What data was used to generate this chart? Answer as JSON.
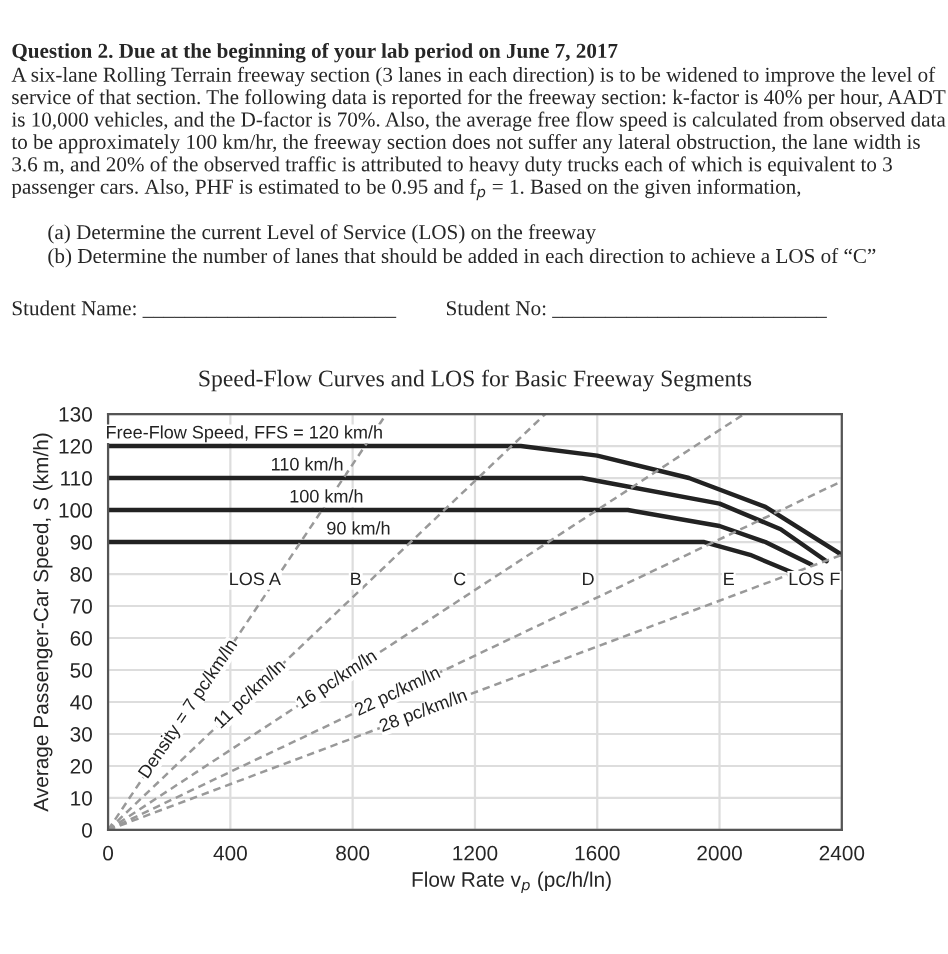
{
  "chart_data": {
    "type": "line",
    "title": "Speed-Flow Curves and LOS for Basic Freeway Segments",
    "xlabel": "Flow Rate v$_{p}$ (pc/h/ln)",
    "ylabel": "Average Passenger-Car Speed, S (km/h)",
    "xlim": [
      0,
      2400
    ],
    "xticks": [
      0,
      400,
      800,
      1200,
      1600,
      2000,
      2400
    ],
    "ylim": [
      0,
      130
    ],
    "yticks": [
      0,
      10,
      20,
      30,
      40,
      50,
      60,
      70,
      80,
      90,
      100,
      110,
      120,
      130
    ],
    "grid": true,
    "legend": false,
    "marker": "none",
    "line_style": "solid",
    "series": [
      {
        "name": "Free-Flow Speed, FFS = 120 km/h",
        "color": "#222222",
        "x": [
          0,
          1350,
          1600,
          1900,
          2150,
          2400
        ],
        "values": [
          120,
          120,
          117,
          110,
          101,
          86
        ]
      },
      {
        "name": "110 km/h",
        "color": "#222222",
        "x": [
          0,
          1550,
          2000,
          2200,
          2350
        ],
        "values": [
          110,
          110,
          102,
          94,
          84
        ]
      },
      {
        "name": "100 km/h",
        "color": "#222222",
        "x": [
          0,
          1700,
          2000,
          2150,
          2300
        ],
        "values": [
          100,
          100,
          95,
          90,
          83
        ]
      },
      {
        "name": "90 km/h",
        "color": "#222222",
        "x": [
          0,
          1950,
          2100,
          2250
        ],
        "values": [
          90,
          90,
          86,
          80
        ]
      },
      {
        "name": "Density = 7 pc/km/ln",
        "color": "#999999",
        "line_style": "dashed",
        "x": [
          0,
          910
        ],
        "values": [
          0,
          130
        ]
      },
      {
        "name": "11 pc/km/ln",
        "color": "#999999",
        "line_style": "dashed",
        "x": [
          0,
          1430
        ],
        "values": [
          0,
          130
        ]
      },
      {
        "name": "16 pc/km/ln",
        "color": "#999999",
        "line_style": "dashed",
        "x": [
          0,
          2080
        ],
        "values": [
          0,
          130
        ]
      },
      {
        "name": "22 pc/km/ln",
        "color": "#999999",
        "line_style": "dashed",
        "x": [
          0,
          2400
        ],
        "values": [
          0,
          109
        ]
      },
      {
        "name": "28 pc/km/ln",
        "color": "#999999",
        "line_style": "dashed",
        "x": [
          0,
          2400
        ],
        "values": [
          0,
          86
        ]
      }
    ],
    "annotations": [
      "Question 2. Due at the beginning of your lab period on June 7, 2017",
      "A six-lane Rolling Terrain freeway section (3 lanes in each direction) is to be widened to improve the level of service of that section. The following data is reported for the freeway section: k-factor is 40% per hour, AADT is 10,000 vehicles, and the D-factor is 70%. Also, the average free flow speed is calculated from observed data to be approximately 100 km/hr, the freeway section does not suffer any lateral obstruction, the lane width is 3.6 m, and 20% of the observed traffic is attributed to heavy duty trucks each of which is equivalent to 3 passenger cars. Also, PHF is estimated to be 0.95 and f$_{p}$ = 1. Based on the given information,",
      "(a) Determine the current Level of Service (LOS) on the freeway",
      "(b) Determine the number of lanes that should be added in each direction to achieve a LOS of “C”",
      "Student Name: ________________________",
      "Student No: __________________________",
      {
        "text": "LOS A",
        "x": 480,
        "y": 78
      },
      {
        "text": "B",
        "x": 810,
        "y": 78
      },
      {
        "text": "C",
        "x": 1150,
        "y": 78
      },
      {
        "text": "D",
        "x": 1570,
        "y": 78
      },
      {
        "text": "E",
        "x": 2030,
        "y": 78
      },
      {
        "text": "LOS F",
        "x": 2310,
        "y": 78
      }
    ]
  }
}
